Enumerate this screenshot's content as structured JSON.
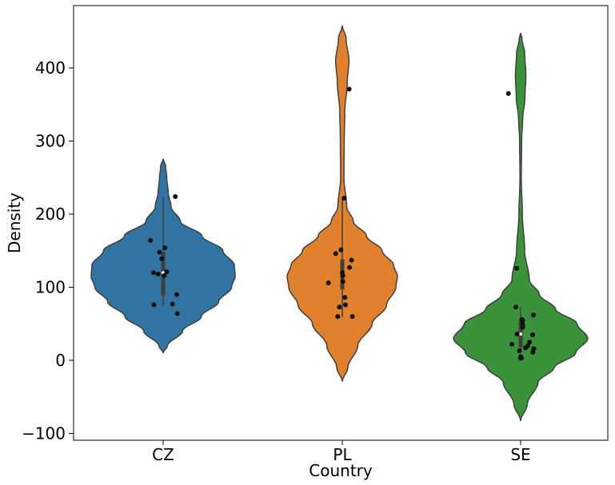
{
  "chart_data": {
    "type": "violin",
    "xlabel": "Country",
    "ylabel": "Density",
    "ylim": [
      -110,
      485
    ],
    "yticks": [
      -100,
      0,
      100,
      200,
      300,
      400
    ],
    "categories": [
      "CZ",
      "PL",
      "SE"
    ],
    "colors": [
      "#3274a1",
      "#e1812c",
      "#3a923a"
    ],
    "violins": [
      {
        "category": "CZ",
        "color": "#3274a1",
        "density_range": [
          10,
          276
        ],
        "profile": [
          [
            10,
            0
          ],
          [
            20,
            0.06
          ],
          [
            40,
            0.27
          ],
          [
            60,
            0.53
          ],
          [
            80,
            0.77
          ],
          [
            100,
            0.95
          ],
          [
            115,
            1.0
          ],
          [
            130,
            0.99
          ],
          [
            150,
            0.83
          ],
          [
            170,
            0.54
          ],
          [
            190,
            0.24
          ],
          [
            210,
            0.11
          ],
          [
            230,
            0.07
          ],
          [
            250,
            0.05
          ],
          [
            265,
            0.035
          ],
          [
            276,
            0
          ]
        ],
        "box": {
          "whisker_low": 75,
          "q1": 88,
          "median": 120,
          "q3": 148,
          "whisker_high": 224
        },
        "points": [
          224,
          164,
          154,
          148,
          139,
          121,
          120,
          118,
          116,
          90,
          77,
          76,
          64
        ]
      },
      {
        "category": "PL",
        "color": "#e1812c",
        "density_range": [
          -29,
          458
        ],
        "profile": [
          [
            -29,
            0
          ],
          [
            -10,
            0.1
          ],
          [
            20,
            0.28
          ],
          [
            50,
            0.54
          ],
          [
            75,
            0.8
          ],
          [
            100,
            0.97
          ],
          [
            115,
            1.0
          ],
          [
            130,
            0.93
          ],
          [
            150,
            0.72
          ],
          [
            170,
            0.44
          ],
          [
            190,
            0.2
          ],
          [
            210,
            0.08
          ],
          [
            250,
            0.03
          ],
          [
            300,
            0.035
          ],
          [
            340,
            0.045
          ],
          [
            380,
            0.09
          ],
          [
            410,
            0.12
          ],
          [
            440,
            0.07
          ],
          [
            458,
            0
          ]
        ],
        "box": {
          "whisker_low": 59,
          "q1": 97,
          "median": 118,
          "q3": 138,
          "whisker_high": 222
        },
        "points": [
          371,
          222,
          151,
          146,
          137,
          127,
          120,
          116,
          108,
          106,
          86,
          76,
          73,
          60,
          60
        ]
      },
      {
        "category": "SE",
        "color": "#3a923a",
        "density_range": [
          -83,
          448
        ],
        "profile": [
          [
            -83,
            0
          ],
          [
            -60,
            0.1
          ],
          [
            -30,
            0.26
          ],
          [
            -10,
            0.5
          ],
          [
            10,
            0.82
          ],
          [
            30,
            1.0
          ],
          [
            50,
            0.84
          ],
          [
            70,
            0.52
          ],
          [
            90,
            0.28
          ],
          [
            110,
            0.13
          ],
          [
            150,
            0.06
          ],
          [
            200,
            0.025
          ],
          [
            250,
            0.01
          ],
          [
            300,
            0.015
          ],
          [
            330,
            0.03
          ],
          [
            360,
            0.065
          ],
          [
            390,
            0.078
          ],
          [
            420,
            0.06
          ],
          [
            440,
            0.02
          ],
          [
            448,
            0
          ]
        ],
        "box": {
          "whisker_low": 11,
          "q1": 18,
          "median": 36,
          "q3": 54,
          "whisker_high": 73
        },
        "points": [
          365,
          126,
          73,
          62,
          56,
          55,
          50,
          47,
          45,
          36,
          35,
          25,
          22,
          20,
          17,
          16,
          13,
          11,
          5,
          3,
          3
        ]
      }
    ]
  }
}
